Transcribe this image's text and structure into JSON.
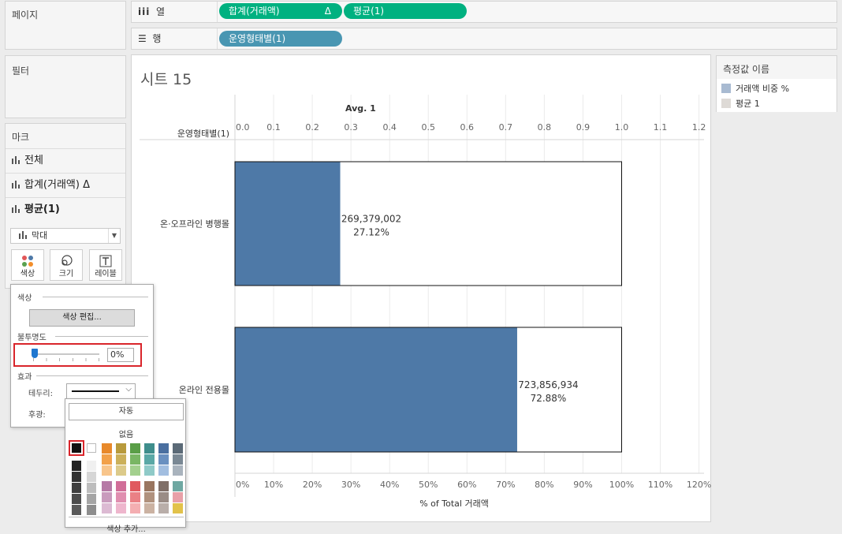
{
  "left_panels": {
    "pages_title": "페이지",
    "filters_title": "필터",
    "marks_title": "마크"
  },
  "shelves": {
    "columns_label": "열",
    "rows_label": "행",
    "columns_pills": [
      {
        "label": "합계(거래액)",
        "delta": "Δ"
      },
      {
        "label": "평균(1)"
      }
    ],
    "rows_pills": [
      {
        "label": "운영형태별(1)"
      }
    ]
  },
  "marks_card": {
    "rows": [
      {
        "label": "전체"
      },
      {
        "label": "합계(거래액) Δ"
      },
      {
        "label": "평균(1)"
      }
    ],
    "mark_type": "막대",
    "buttons": [
      {
        "label": "색상",
        "icon": "color-dots-icon"
      },
      {
        "label": "크기",
        "icon": "size-icon"
      },
      {
        "label": "레이블",
        "icon": "label-t-icon"
      }
    ]
  },
  "color_popup": {
    "color_section": "색상",
    "edit_colors_button": "색상 편집...",
    "opacity_section": "불투명도",
    "opacity_value": "0%",
    "opacity_fraction": 0,
    "effects_section": "효과",
    "border_label": "테두리:",
    "halo_label": "후광:"
  },
  "border_dropdown": {
    "auto_button": "자동",
    "none_label": "없음",
    "more_colors_label": "색상 추가..."
  },
  "sheet": {
    "title": "시트 15"
  },
  "legend": {
    "title": "측정값 이름",
    "items": [
      {
        "label": "거래액 비중 %",
        "color": "#a8bad1"
      },
      {
        "label": "평균 1",
        "color": "#dedad6"
      }
    ]
  },
  "chart_data": {
    "type": "bar",
    "orientation": "horizontal",
    "row_header": "운영형태별(1)",
    "categories": [
      "온·오프라인 병행몰",
      "온라인 전용몰"
    ],
    "series": [
      {
        "name": "거래액 비중 %",
        "values": [
          0.2712,
          0.7288
        ],
        "color": "#4e79a7",
        "labels": [
          [
            "269,379,002",
            "27.12%"
          ],
          [
            "723,856,934",
            "72.88%"
          ]
        ]
      },
      {
        "name": "평균 1",
        "values": [
          1.0,
          1.0
        ],
        "color": "#ffffff"
      }
    ],
    "top_axis": {
      "title": "Avg. 1",
      "ticks": [
        "0.0",
        "0.1",
        "0.2",
        "0.3",
        "0.4",
        "0.5",
        "0.6",
        "0.7",
        "0.8",
        "0.9",
        "1.0",
        "1.1",
        "1.2"
      ],
      "range": [
        0,
        1.2
      ]
    },
    "bottom_axis": {
      "title": "% of Total 거래액",
      "ticks": [
        "0%",
        "10%",
        "20%",
        "30%",
        "40%",
        "50%",
        "60%",
        "70%",
        "80%",
        "90%",
        "100%",
        "110%",
        "120%"
      ],
      "range": [
        0,
        1.2
      ]
    },
    "grid": true
  }
}
